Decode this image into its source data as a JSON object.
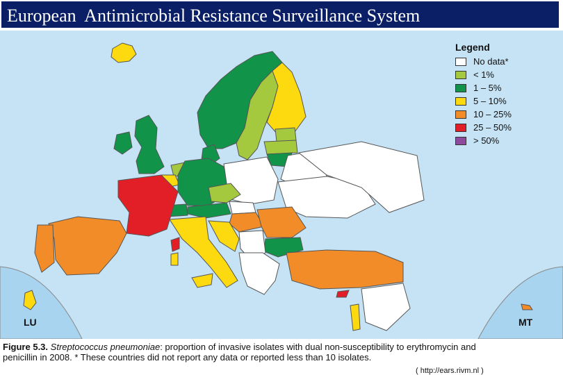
{
  "title": "European  Antimicrobial Resistance Surveillance System",
  "legend": {
    "title": "Legend",
    "items": [
      {
        "label": "No data*",
        "color": "#ffffff"
      },
      {
        "label": "< 1%",
        "color": "#a4c93f"
      },
      {
        "label": "1 – 5%",
        "color": "#12934a"
      },
      {
        "label": "5 – 10%",
        "color": "#fdd90f"
      },
      {
        "label": "10 – 25%",
        "color": "#f28c28"
      },
      {
        "label": "25 – 50%",
        "color": "#e21f26"
      },
      {
        "label": "> 50%",
        "color": "#8e4a9c"
      }
    ]
  },
  "insets": {
    "left": "LU",
    "right": "MT"
  },
  "caption": {
    "figure": "Figure 5.3.",
    "species": "Streptococcus pneumoniae",
    "text1": ": proportion of invasive isolates with dual non-susceptibility to erythromycin and",
    "text2": "penicillin in 2008. * These countries did not report any data or reported less than 10 isolates."
  },
  "source": "( http://ears.rivm.nl )",
  "colors": {
    "sea": "#c5e3f4",
    "title_bg": "#0a1f66",
    "border": "#555555"
  }
}
